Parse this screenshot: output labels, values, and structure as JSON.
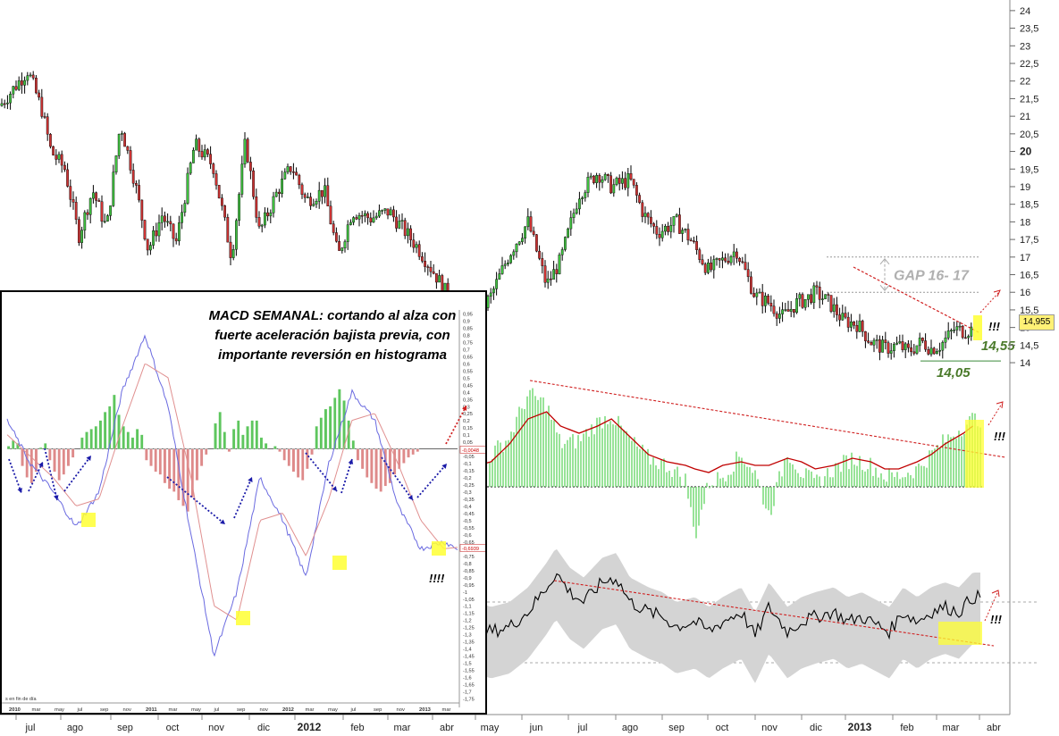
{
  "chart_data": [
    {
      "type": "line",
      "title": "",
      "style": "candlestick",
      "y_axis": {
        "side": "right",
        "range": [
          13.9,
          24.2
        ],
        "ticks": [
          "14",
          "14,5",
          "15",
          "15,5",
          "16",
          "16,5",
          "17",
          "17,5",
          "18",
          "18,5",
          "19",
          "19,5",
          "20",
          "20,5",
          "21",
          "21,5",
          "22",
          "22,5",
          "23",
          "23,5",
          "24"
        ],
        "bold_ticks": [
          "20"
        ]
      },
      "x_axis": {
        "labels": [
          "jul",
          "ago",
          "sep",
          "oct",
          "nov",
          "dic",
          "2012",
          "feb",
          "mar",
          "abr",
          "may",
          "jun",
          "jul",
          "ago",
          "sep",
          "oct",
          "nov",
          "dic",
          "2013",
          "feb",
          "mar",
          "abr"
        ],
        "bold_labels": [
          "2012",
          "2013"
        ]
      },
      "x_domain": [
        0,
        21.8
      ],
      "series": [
        {
          "x": [
            0,
            0.3,
            0.6,
            0.9,
            1.1,
            1.4,
            1.7,
            2.0,
            2.3,
            2.6,
            2.9,
            3.2,
            3.5,
            3.8,
            4.2,
            4.6,
            5.0,
            5.3,
            5.6,
            6.0,
            6.3,
            6.6,
            7.0,
            7.3,
            7.6,
            8.0,
            8.4,
            8.7,
            9.0,
            9.4,
            9.8,
            10.2,
            10.6,
            11.0,
            11.4,
            11.8,
            12.1,
            12.5,
            12.9,
            13.2,
            13.6,
            13.9,
            14.2,
            14.6,
            14.9,
            15.3,
            15.6,
            15.9,
            16.3,
            16.6,
            16.9,
            17.2,
            17.4,
            17.6,
            17.9,
            18.2,
            18.5,
            18.8,
            19.1,
            19.4,
            19.6,
            19.9,
            20.1,
            20.3,
            20.6,
            20.8,
            21.0
          ],
          "y": [
            21.3,
            21.8,
            22.3,
            21.2,
            20.0,
            19.5,
            17.6,
            18.9,
            17.8,
            20.8,
            19.2,
            17.2,
            18.2,
            17.4,
            20.2,
            19.6,
            17.0,
            20.3,
            17.7,
            18.9,
            19.6,
            18.6,
            18.9,
            17.0,
            18.3,
            18.1,
            18.3,
            17.8,
            17.3,
            16.5,
            15.6,
            15.1,
            15.9,
            17.1,
            18.0,
            16.2,
            16.9,
            18.8,
            19.4,
            19.0,
            19.2,
            18.2,
            17.7,
            18.0,
            17.5,
            16.6,
            16.9,
            17.2,
            15.9,
            15.7,
            15.3,
            15.7,
            15.8,
            16.0,
            15.7,
            15.2,
            15.1,
            14.6,
            14.4,
            14.5,
            14.3,
            14.6,
            14.4,
            14.5,
            14.95,
            14.9,
            14.95
          ]
        }
      ],
      "annotations": {
        "gap_label": "GAP 16- 17",
        "gap_levels": [
          16,
          17
        ],
        "resistance_label": "14,55",
        "support_label": "14,05",
        "last_price": "14,955",
        "exclaim": "!!!"
      }
    },
    {
      "type": "bar",
      "title": "",
      "series": [
        {
          "x": [
            10,
            10.6,
            11.0,
            11.4,
            11.8,
            12.1,
            12.5,
            12.9,
            13.2,
            13.6,
            14.0,
            14.4,
            14.8,
            15.0,
            15.3,
            15.6,
            16.0,
            16.3,
            16.6,
            17.0,
            17.3,
            17.6,
            18.0,
            18.4,
            18.8,
            19.1,
            19.4,
            19.8,
            20.1,
            20.4,
            20.8,
            21.0
          ],
          "values": [
            0.6,
            0.9,
            1.4,
            2.6,
            2.3,
            1.2,
            1.3,
            1.8,
            2.0,
            1.3,
            0.8,
            0.6,
            0.2,
            -1.4,
            0.1,
            0.3,
            0.9,
            0.4,
            -0.8,
            1.0,
            0.4,
            0.1,
            0.5,
            0.8,
            0.6,
            0.3,
            0.3,
            0.5,
            0.9,
            1.3,
            1.7,
            1.9
          ]
        },
        {
          "x": [
            10,
            10.6,
            11.0,
            11.4,
            11.8,
            12.1,
            12.5,
            12.9,
            13.2,
            13.6,
            14.0,
            14.4,
            14.8,
            15.0,
            15.3,
            15.6,
            16.0,
            16.3,
            16.6,
            17.0,
            17.3,
            17.6,
            18.0,
            18.4,
            18.8,
            19.1,
            19.4,
            19.8,
            20.1,
            20.4,
            20.8,
            21.0
          ],
          "values": [
            0.5,
            0.7,
            1.2,
            1.9,
            2.1,
            1.7,
            1.5,
            1.7,
            1.9,
            1.4,
            0.9,
            0.7,
            0.6,
            0.5,
            0.4,
            0.6,
            0.7,
            0.6,
            0.6,
            0.8,
            0.7,
            0.5,
            0.6,
            0.8,
            0.7,
            0.5,
            0.5,
            0.7,
            0.9,
            1.2,
            1.5,
            1.7
          ]
        }
      ],
      "annotations": {
        "exclaim": "!!!"
      }
    },
    {
      "type": "area",
      "title": "",
      "series": [
        {
          "x": [
            10,
            10.6,
            11.0,
            11.4,
            11.8,
            12.0,
            12.3,
            12.6,
            13.0,
            13.3,
            13.6,
            14.0,
            14.3,
            14.6,
            15.0,
            15.3,
            15.6,
            16.0,
            16.3,
            16.6,
            17.0,
            17.3,
            17.6,
            18.0,
            18.3,
            18.6,
            19.0,
            19.2,
            19.5,
            19.8,
            20.1,
            20.4,
            20.7,
            21.0
          ],
          "values": [
            4,
            3,
            3.5,
            5,
            7.5,
            9,
            7,
            6,
            8,
            8.5,
            6,
            5,
            4.5,
            3.5,
            4,
            3,
            4,
            5,
            2.5,
            5.5,
            3,
            4,
            4.5,
            5,
            4,
            4.5,
            3.5,
            3,
            5,
            4,
            5,
            5.5,
            5,
            6.5
          ]
        }
      ],
      "annotations": {
        "exclaim": "!!!"
      }
    },
    {
      "type": "bar",
      "title": "MACD SEMANAL: cortando al alza con fuerte aceleración bajista previa, con importante reversión en histograma",
      "x_labels": [
        "2010",
        "mar",
        "may",
        "jul",
        "sep",
        "nov",
        "2011",
        "mar",
        "may",
        "jul",
        "sep",
        "nov",
        "2012",
        "mar",
        "may",
        "jul",
        "sep",
        "nov",
        "2013",
        "mar"
      ],
      "footnote": "s en fin de día",
      "y_axis": {
        "range": [
          -1.75,
          0.95
        ],
        "ticks": [
          "0,95",
          "0,9",
          "0,85",
          "0,8",
          "0,75",
          "0,7",
          "0,65",
          "0,6",
          "0,55",
          "0,5",
          "0,45",
          "0,4",
          "0,35",
          "0,3",
          "0,25",
          "0,2",
          "0,15",
          "0,1",
          "0,05",
          "0",
          "-0,05",
          "-0,1",
          "-0,15",
          "-0,2",
          "-0,25",
          "-0,3",
          "-0,35",
          "-0,4",
          "-0,45",
          "-0,5",
          "-0,55",
          "-0,6",
          "-0,65",
          "-0,7",
          "-0,75",
          "-0,8",
          "-0,85",
          "-0,9",
          "-0,95",
          "-1",
          "-1,05",
          "-1,1",
          "-1,15",
          "-1,2",
          "-1,25",
          "-1,3",
          "-1,35",
          "-1,4",
          "-1,45",
          "-1,5",
          "-1,55",
          "-1,6",
          "-1,65",
          "-1,7",
          "-1,75"
        ]
      },
      "value_tags": [
        "-0,0048",
        "-0,6939"
      ],
      "series": [
        {
          "name": "histogram",
          "x": [
            0,
            2,
            4,
            6,
            8,
            10,
            12,
            14,
            16,
            18,
            20,
            22,
            24,
            26,
            28,
            30,
            32,
            34,
            36,
            38,
            40,
            42,
            44,
            46,
            48,
            50,
            52,
            54,
            56,
            58,
            60,
            62,
            64,
            66,
            68,
            70,
            72,
            74,
            76,
            78,
            80,
            82,
            84,
            86,
            88,
            90,
            92,
            94,
            96,
            98,
            100,
            102,
            104,
            106,
            108,
            110,
            112,
            114,
            116,
            118,
            120,
            122,
            124,
            126,
            128,
            130,
            132,
            134,
            136,
            138,
            140,
            142,
            144,
            146,
            148,
            150,
            152,
            154,
            156,
            158,
            160,
            162,
            164,
            166,
            168,
            170,
            172,
            174,
            176,
            178,
            180,
            182,
            184,
            186,
            188,
            190,
            192,
            194,
            196
          ],
          "values": [
            0.02,
            0.06,
            0.04,
            -0.12,
            -0.2,
            -0.24,
            -0.16,
            0.01,
            0.04,
            -0.08,
            -0.16,
            -0.22,
            -0.18,
            -0.12,
            -0.06,
            0.0,
            0.08,
            0.12,
            0.14,
            0.16,
            0.2,
            0.26,
            0.3,
            0.38,
            0.24,
            0.16,
            0.12,
            0.08,
            0.14,
            0.1,
            -0.08,
            -0.12,
            -0.16,
            -0.18,
            -0.24,
            -0.28,
            -0.3,
            -0.36,
            -0.4,
            -0.44,
            -0.34,
            -0.22,
            -0.12,
            -0.04,
            0.0,
            0.18,
            0.26,
            0.12,
            -0.02,
            0.14,
            0.2,
            0.1,
            0.16,
            0.2,
            0.2,
            0.08,
            0.04,
            0.0,
            0.02,
            -0.02,
            -0.08,
            -0.12,
            -0.16,
            -0.2,
            -0.22,
            -0.14,
            -0.04,
            0.16,
            0.22,
            0.28,
            0.3,
            0.36,
            0.42,
            0.34,
            0.2,
            0.06,
            -0.08,
            -0.14,
            -0.2,
            -0.24,
            -0.28,
            -0.3,
            -0.26,
            -0.24,
            -0.18,
            -0.14,
            -0.1,
            -0.06,
            -0.04,
            -0.02,
            0.0,
            0.0,
            0.0,
            0.0,
            0.0,
            0.0,
            0.0,
            0.0,
            0.0
          ]
        },
        {
          "name": "macd",
          "x": [
            0,
            10,
            20,
            30,
            40,
            50,
            60,
            70,
            80,
            90,
            100,
            110,
            120,
            130,
            140,
            150,
            160,
            170,
            180,
            190,
            196
          ],
          "values": [
            0.2,
            -0.1,
            -0.3,
            -0.55,
            -0.3,
            0.4,
            0.8,
            0.3,
            -0.6,
            -1.45,
            -1.0,
            -0.2,
            -0.5,
            -0.9,
            -0.1,
            0.4,
            0.2,
            -0.4,
            -0.7,
            -0.65,
            -0.7
          ]
        },
        {
          "name": "signal",
          "x": [
            0,
            10,
            20,
            30,
            40,
            50,
            60,
            70,
            80,
            90,
            100,
            110,
            120,
            130,
            140,
            150,
            160,
            170,
            180,
            190,
            196
          ],
          "values": [
            0.1,
            -0.05,
            -0.2,
            -0.4,
            -0.35,
            0.15,
            0.6,
            0.5,
            -0.2,
            -1.1,
            -1.2,
            -0.5,
            -0.45,
            -0.75,
            -0.35,
            0.2,
            0.25,
            -0.1,
            -0.5,
            -0.7,
            -0.69
          ]
        }
      ],
      "annotations": {
        "exclaim": "!!!!"
      }
    }
  ]
}
